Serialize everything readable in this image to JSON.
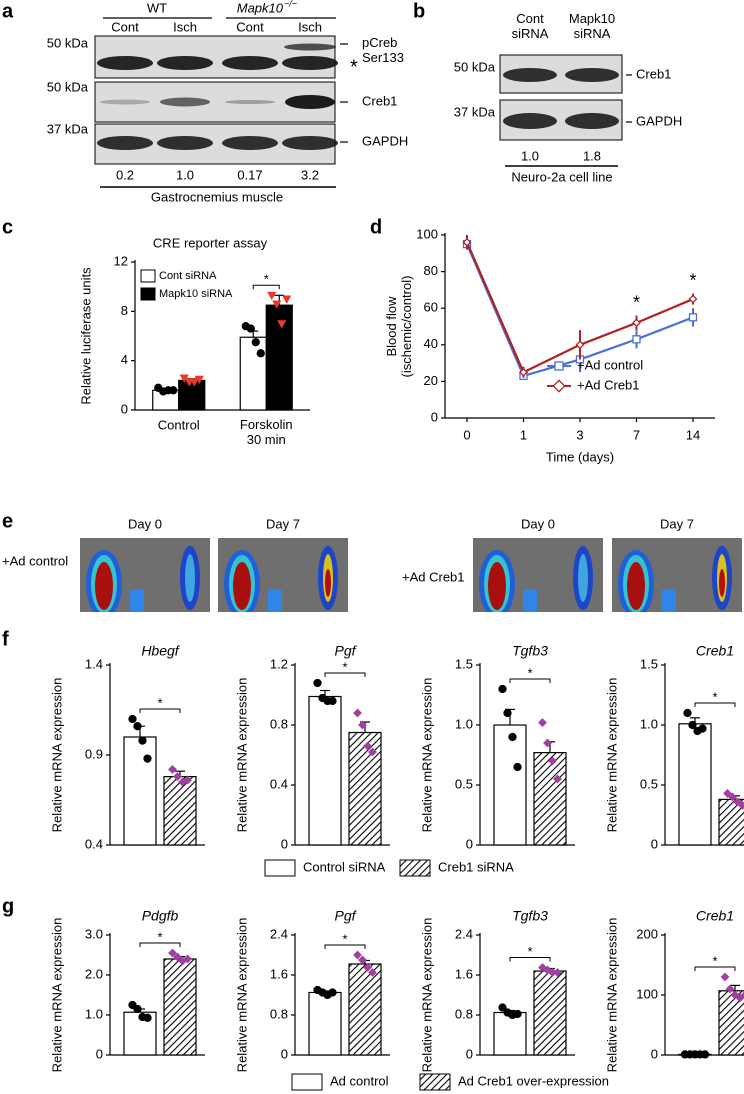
{
  "panel_labels": [
    "a",
    "b",
    "c",
    "d",
    "e",
    "f",
    "g"
  ],
  "blot_a": {
    "group_labels": [
      "WT",
      "Mapk10"
    ],
    "group_superscript": "−/−",
    "lanes": [
      "Cont",
      "Isch",
      "Cont",
      "Isch"
    ],
    "markers": [
      "50 kDa",
      "50 kDa",
      "37 kDa"
    ],
    "bands": [
      "pCreb Ser133",
      "Creb1",
      "GAPDH"
    ],
    "nonspecific": "*",
    "quantification": [
      "0.2",
      "1.0",
      "0.17",
      "3.2"
    ],
    "tissue": "Gastrocnemius muscle"
  },
  "blot_b": {
    "lanes": [
      "Cont siRNA",
      "Mapk10 siRNA"
    ],
    "markers": [
      "50 kDa",
      "37 kDa"
    ],
    "bands": [
      "Creb1",
      "GAPDH"
    ],
    "quantification": [
      "1.0",
      "1.8"
    ],
    "cell_line": "Neuro-2a cell line"
  },
  "panel_e": {
    "conditions": [
      {
        "label": "+Ad control",
        "days": [
          "Day 0",
          "Day 7"
        ]
      },
      {
        "label": "+Ad Creb1",
        "days": [
          "Day 0",
          "Day 7"
        ]
      }
    ]
  },
  "legend_f": [
    "Control siRNA",
    "Creb1 siRNA"
  ],
  "legend_g": [
    "Ad control",
    "Ad Creb1 over-expression"
  ],
  "chart_data": [
    {
      "type": "bar",
      "title": "CRE reporter assay",
      "y_label": "Relative luciferase units",
      "categories": [
        "Control",
        "Forskolin 30 min"
      ],
      "ylim": [
        0,
        12
      ],
      "yticks": [
        0,
        4,
        8,
        12
      ],
      "legend": "upper left",
      "significance": [
        null,
        "*"
      ],
      "series": [
        {
          "name": "Cont siRNA",
          "color": "#ffffff",
          "point_color": "#000000",
          "point_shape": "circle",
          "values": [
            1.6,
            5.9
          ],
          "errors": [
            0.1,
            0.5
          ],
          "points": [
            [
              1.8,
              1.5,
              1.6,
              1.6
            ],
            [
              6.8,
              6.6,
              5.5,
              4.6
            ]
          ]
        },
        {
          "name": "Mapk10 siRNA",
          "color": "#000000",
          "point_color": "#e53a2c",
          "point_shape": "triangle",
          "values": [
            2.4,
            8.5
          ],
          "errors": [
            0.15,
            0.8
          ],
          "points": [
            [
              2.6,
              2.3,
              2.3,
              2.5
            ],
            [
              9.3,
              8.6,
              7.0,
              9.0
            ]
          ]
        }
      ]
    },
    {
      "type": "line",
      "y_label": "Blood flow (ischemic/control)",
      "x_label": "Time (days)",
      "categories": [
        "0",
        "1",
        "3",
        "7",
        "14"
      ],
      "ylim": [
        0,
        100
      ],
      "yticks": [
        0,
        20,
        40,
        60,
        80,
        100
      ],
      "legend": "lower right",
      "significance": [
        null,
        null,
        null,
        "*",
        "*"
      ],
      "series": [
        {
          "name": "+Ad control",
          "color": "#4a6fd8",
          "marker": "square",
          "values": [
            95,
            23,
            32,
            43,
            55
          ],
          "errors": [
            3,
            2,
            7,
            5,
            5
          ]
        },
        {
          "name": "+Ad Creb1",
          "color": "#b22222",
          "marker": "diamond",
          "values": [
            96,
            25,
            40,
            52,
            65
          ],
          "errors": [
            4,
            3,
            8,
            4,
            3
          ]
        }
      ]
    },
    {
      "type": "bar",
      "title": "Hbegf",
      "y_label": "Relative mRNA expression",
      "ylim": [
        0.4,
        1.4
      ],
      "yticks": [
        0.4,
        0.9,
        1.4
      ],
      "values": [
        1.0,
        0.78
      ],
      "errors": [
        0.06,
        0.03
      ],
      "points": [
        [
          1.1,
          1.06,
          0.98,
          0.88
        ],
        [
          0.82,
          0.78,
          0.75,
          0.76
        ]
      ],
      "hatched": [
        false,
        true
      ],
      "point_colors": [
        "#000000",
        "#a040a0"
      ],
      "point_shapes": [
        "circle",
        "diamond"
      ],
      "significance": "*"
    },
    {
      "type": "bar",
      "title": "Pgf",
      "y_label": "Relative mRNA expression",
      "ylim": [
        0,
        1.2
      ],
      "yticks": [
        0,
        0.4,
        0.8,
        1.2
      ],
      "values": [
        0.99,
        0.75
      ],
      "errors": [
        0.04,
        0.07
      ],
      "points": [
        [
          1.08,
          0.98,
          0.96,
          0.96
        ],
        [
          0.88,
          0.8,
          0.66,
          0.62
        ]
      ],
      "hatched": [
        false,
        true
      ],
      "point_colors": [
        "#000000",
        "#a040a0"
      ],
      "point_shapes": [
        "circle",
        "diamond"
      ],
      "significance": "*"
    },
    {
      "type": "bar",
      "title": "Tgfb3",
      "y_label": "Relative mRNA expression",
      "ylim": [
        0,
        1.5
      ],
      "yticks": [
        0,
        0.5,
        {
          "value": 1,
          "label": "1.0"
        },
        1.5
      ],
      "values": [
        1.0,
        0.77
      ],
      "errors": [
        0.13,
        0.09
      ],
      "points": [
        [
          1.3,
          1.1,
          0.9,
          0.65
        ],
        [
          1.02,
          0.85,
          0.7,
          0.55
        ]
      ],
      "hatched": [
        false,
        true
      ],
      "point_colors": [
        "#000000",
        "#a040a0"
      ],
      "point_shapes": [
        "circle",
        "diamond"
      ],
      "significance": "*"
    },
    {
      "type": "bar",
      "title": "Creb1",
      "y_label": "Relative mRNA expression",
      "ylim": [
        0,
        1.5
      ],
      "yticks": [
        0,
        0.5,
        {
          "value": 1,
          "label": "1.0"
        },
        1.5
      ],
      "values": [
        1.01,
        0.38
      ],
      "errors": [
        0.05,
        0.03
      ],
      "points": [
        [
          1.1,
          1.0,
          0.95,
          0.97
        ],
        [
          0.43,
          0.4,
          0.36,
          0.33
        ]
      ],
      "hatched": [
        false,
        true
      ],
      "point_colors": [
        "#000000",
        "#a040a0"
      ],
      "point_shapes": [
        "circle",
        "diamond"
      ],
      "significance": "*"
    },
    {
      "type": "bar",
      "title": "Pdgfb",
      "y_label": "Relative mRNA expression",
      "ylim": [
        0,
        3
      ],
      "yticks": [
        0,
        {
          "value": 1,
          "label": "1.0"
        },
        {
          "value": 2,
          "label": "2.0"
        },
        {
          "value": 3,
          "label": "3.0"
        }
      ],
      "values": [
        1.07,
        2.4
      ],
      "errors": [
        0.08,
        0.06
      ],
      "points": [
        [
          1.25,
          1.15,
          0.95,
          0.93
        ],
        [
          2.55,
          2.45,
          2.35,
          2.4
        ]
      ],
      "hatched": [
        false,
        true
      ],
      "point_colors": [
        "#000000",
        "#a040a0"
      ],
      "point_shapes": [
        "circle",
        "diamond"
      ],
      "significance": "*"
    },
    {
      "type": "bar",
      "title": "Pgf",
      "y_label": "Relative mRNA expression",
      "ylim": [
        0,
        2.4
      ],
      "yticks": [
        0,
        0.8,
        1.6,
        2.4
      ],
      "values": [
        1.25,
        1.82
      ],
      "errors": [
        0.03,
        0.07
      ],
      "points": [
        [
          1.3,
          1.25,
          1.2,
          1.25
        ],
        [
          2.0,
          1.9,
          1.75,
          1.65
        ]
      ],
      "hatched": [
        false,
        true
      ],
      "point_colors": [
        "#000000",
        "#a040a0"
      ],
      "point_shapes": [
        "circle",
        "diamond"
      ],
      "significance": "*"
    },
    {
      "type": "bar",
      "title": "Tgfb3",
      "y_label": "Relative mRNA expression",
      "ylim": [
        0,
        2.4
      ],
      "yticks": [
        0,
        0.8,
        1.6,
        2.4
      ],
      "values": [
        0.85,
        1.68
      ],
      "errors": [
        0.04,
        0.05
      ],
      "points": [
        [
          0.95,
          0.85,
          0.8,
          0.82
        ],
        [
          1.75,
          1.7,
          1.65,
          1.65
        ]
      ],
      "hatched": [
        false,
        true
      ],
      "point_colors": [
        "#000000",
        "#a040a0"
      ],
      "point_shapes": [
        "circle",
        "diamond"
      ],
      "significance": "*"
    },
    {
      "type": "bar",
      "title": "Creb1",
      "y_label": "Relative mRNA expression",
      "ylim": [
        0,
        200
      ],
      "yticks": [
        0,
        100,
        200
      ],
      "values": [
        1,
        107
      ],
      "errors": [
        0,
        9
      ],
      "points": [
        [
          1,
          1,
          1,
          1,
          1
        ],
        [
          130,
          110,
          100,
          95,
          100
        ]
      ],
      "hatched": [
        false,
        true
      ],
      "point_colors": [
        "#000000",
        "#a040a0"
      ],
      "point_shapes": [
        "circle",
        "diamond"
      ],
      "significance": "*"
    }
  ]
}
